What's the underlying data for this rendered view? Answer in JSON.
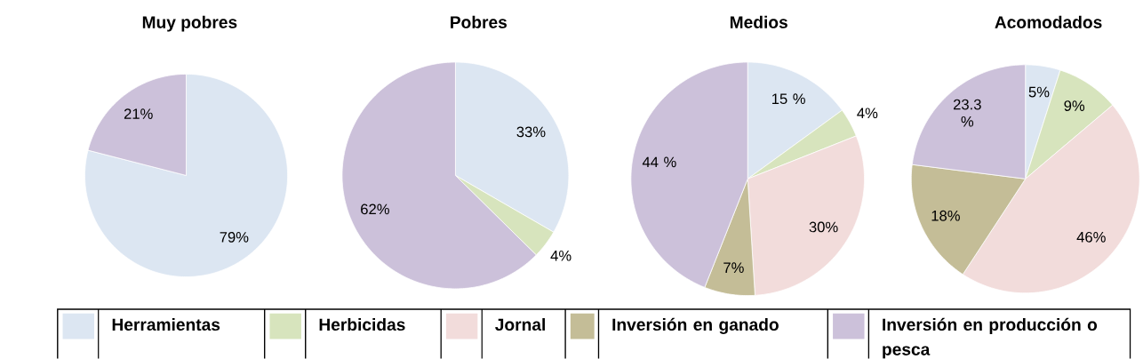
{
  "chart_data": [
    {
      "type": "pie",
      "title": "Muy pobres",
      "categories": [
        null,
        null
      ],
      "values": [
        79,
        21
      ],
      "colors": [
        "#dce6f2",
        "#ccc1da"
      ],
      "value_labels": [
        "79%",
        "21%"
      ]
    },
    {
      "type": "pie",
      "title": "Pobres",
      "categories": [
        null,
        null,
        null
      ],
      "values": [
        33,
        4,
        62
      ],
      "colors": [
        "#dce6f2",
        "#d7e4bd",
        "#ccc1da"
      ],
      "value_labels": [
        "33%",
        "4%",
        "62%"
      ]
    },
    {
      "type": "pie",
      "title": "Medios",
      "categories": [
        null,
        null,
        null,
        null,
        null
      ],
      "values": [
        15,
        4,
        30,
        7,
        44
      ],
      "colors": [
        "#dce6f2",
        "#d7e4bd",
        "#f2dcdb",
        "#c4bd97",
        "#ccc1da"
      ],
      "value_labels": [
        "15 %",
        "4%",
        "30%",
        "7%",
        "44 %"
      ]
    },
    {
      "type": "pie",
      "title": "Acomodados",
      "categories": [
        "Herramientas",
        "Herbicidas",
        "Jornal",
        "Inversión en ganado",
        "Inversión en producción o pesca"
      ],
      "values": [
        5,
        9,
        46,
        18,
        23.3
      ],
      "colors": [
        "#dce6f2",
        "#d7e4bd",
        "#f2dcdb",
        "#c4bd97",
        "#ccc1da"
      ],
      "value_labels": [
        "5%",
        "9%",
        "46%",
        "18%",
        "23.3 %"
      ],
      "legend": "bottom"
    }
  ]
}
